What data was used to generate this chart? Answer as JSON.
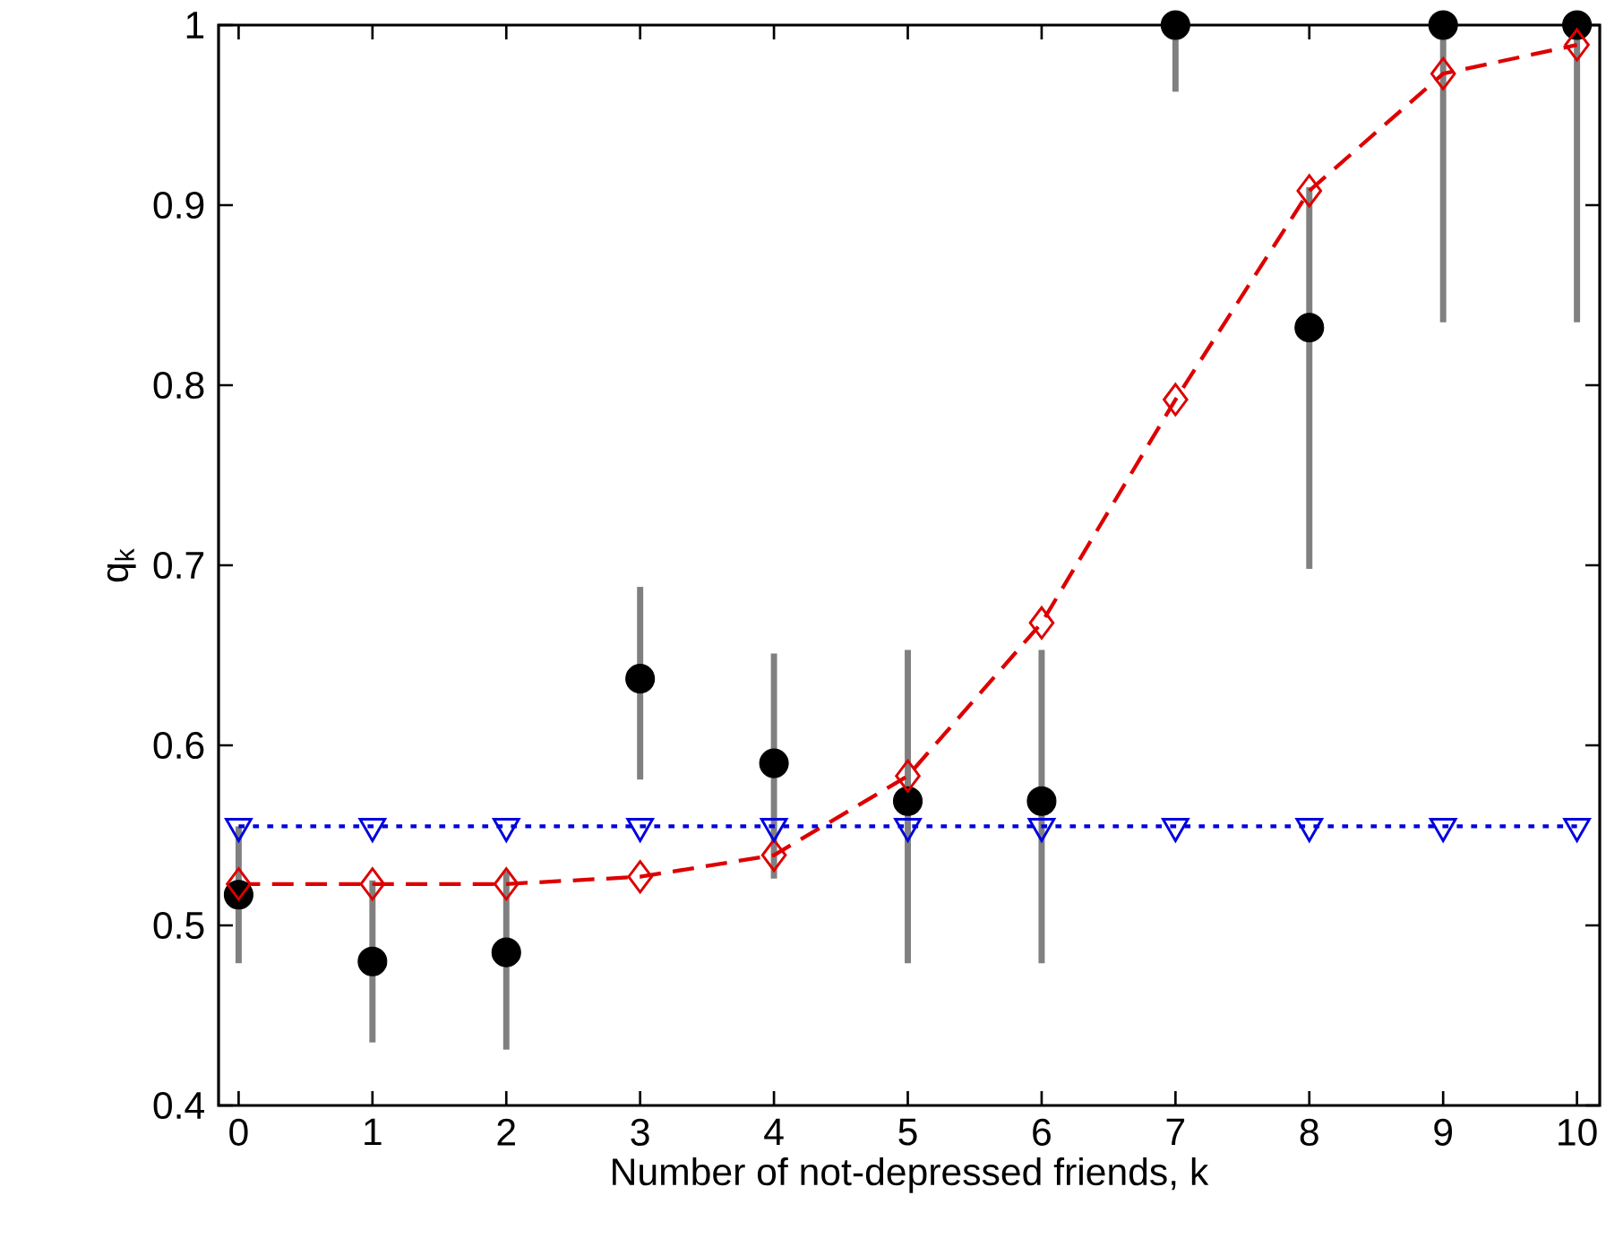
{
  "chart_data": {
    "type": "line",
    "xlabel": "Number of not-depressed friends, k",
    "ylabel": "q$_{k}$",
    "x": [
      0,
      1,
      2,
      3,
      4,
      5,
      6,
      7,
      8,
      9,
      10
    ],
    "xlim": [
      -0.15,
      10.17
    ],
    "ylim": [
      0.4,
      1.0
    ],
    "xticks": [
      0,
      1,
      2,
      3,
      4,
      5,
      6,
      7,
      8,
      9,
      10
    ],
    "yticks": [
      0.4,
      0.5,
      0.6,
      0.7,
      0.8,
      0.9,
      1
    ],
    "series": [
      {
        "type": "scatter",
        "color": "#000000",
        "marker": "circle",
        "values": [
          0.517,
          0.48,
          0.485,
          0.637,
          0.59,
          0.569,
          0.569,
          1.0,
          0.832,
          1.0,
          1.0
        ],
        "errors": [
          [
            0.479,
            0.555
          ],
          [
            0.435,
            0.525
          ],
          [
            0.431,
            0.53
          ],
          [
            0.581,
            0.688
          ],
          [
            0.526,
            0.651
          ],
          [
            0.479,
            0.653
          ],
          [
            0.479,
            0.653
          ],
          [
            0.963,
            1.0
          ],
          [
            0.698,
            0.91
          ],
          [
            0.835,
            1.0
          ],
          [
            0.835,
            1.0
          ]
        ]
      },
      {
        "color": "#dd0000",
        "marker": "diamond",
        "line_style": "dashed",
        "values": [
          0.523,
          0.523,
          0.523,
          0.527,
          0.539,
          0.583,
          0.668,
          0.792,
          0.908,
          0.973,
          0.989
        ]
      },
      {
        "color": "#0000dd",
        "marker": "triangle",
        "line_style": "dotted",
        "values": [
          0.555,
          0.555,
          0.555,
          0.555,
          0.555,
          0.555,
          0.555,
          0.555,
          0.555,
          0.555,
          0.555
        ]
      }
    ]
  }
}
